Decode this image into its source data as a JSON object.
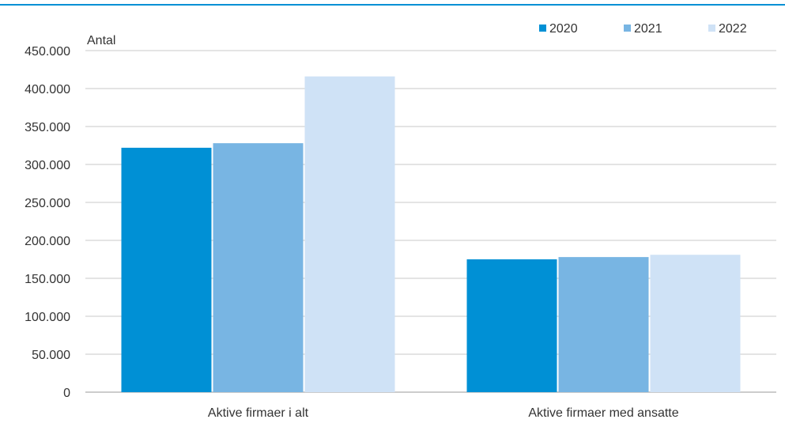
{
  "chart_data": {
    "type": "bar",
    "ylabel": "Antal",
    "categories": [
      "Aktive firmaer i alt",
      "Aktive firmaer med ansatte"
    ],
    "series": [
      {
        "name": "2020",
        "color": "#0090d5",
        "values": [
          322000,
          175000
        ]
      },
      {
        "name": "2021",
        "color": "#78b5e3",
        "values": [
          328000,
          178000
        ]
      },
      {
        "name": "2022",
        "color": "#cfe2f6",
        "values": [
          416000,
          181000
        ]
      }
    ],
    "ylim": [
      0,
      450000
    ],
    "yticks": [
      0,
      50000,
      100000,
      150000,
      200000,
      250000,
      300000,
      350000,
      400000,
      450000
    ],
    "ytick_labels": [
      "0",
      "50.000",
      "100.000",
      "150.000",
      "200.000",
      "250.000",
      "300.000",
      "350.000",
      "400.000",
      "450.000"
    ],
    "grid": true,
    "legend_position": "top-right",
    "accent_color": "#0090d5"
  }
}
